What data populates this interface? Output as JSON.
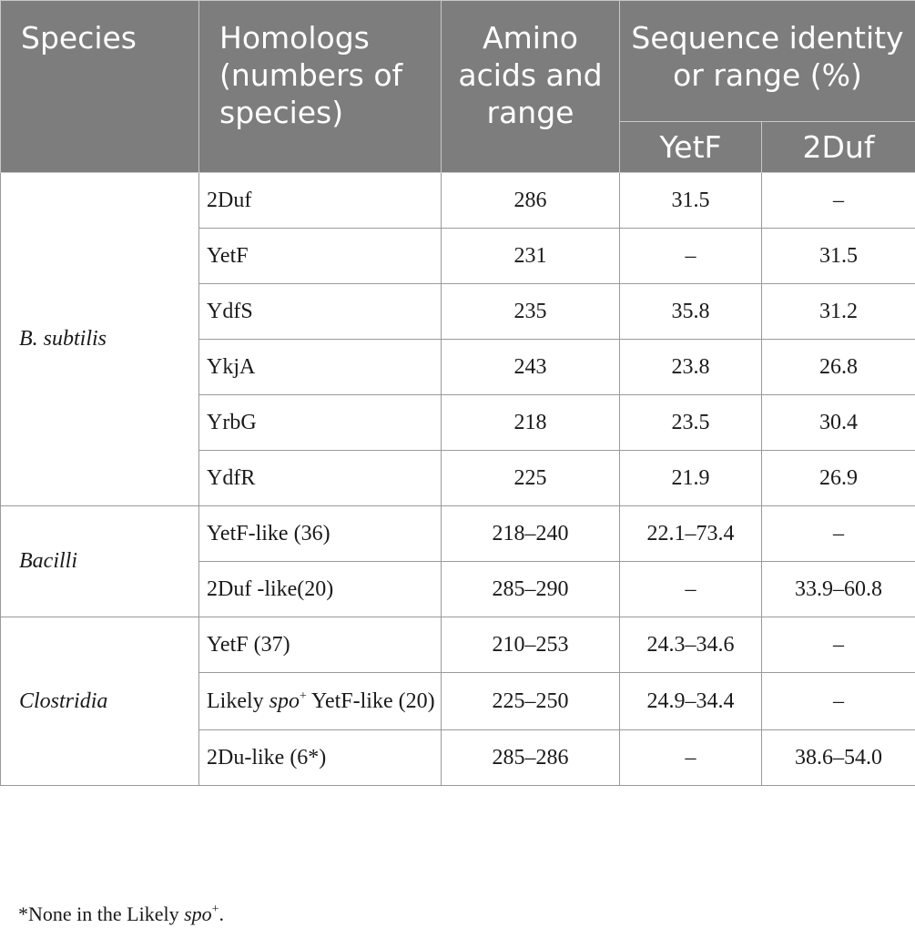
{
  "header": {
    "species": "Species",
    "homologs": "Homologs (numbers of species)",
    "amino": "Amino acids and range",
    "identity": "Sequence identity or range (%)",
    "yetf": "YetF",
    "duf": "2Duf"
  },
  "groups": [
    {
      "species": "B. subtilis",
      "rows": [
        {
          "homolog": "2Duf",
          "aa": "286",
          "yetf": "31.5",
          "duf": "–"
        },
        {
          "homolog": "YetF",
          "aa": "231",
          "yetf": "–",
          "duf": "31.5"
        },
        {
          "homolog": "YdfS",
          "aa": "235",
          "yetf": "35.8",
          "duf": "31.2"
        },
        {
          "homolog": "YkjA",
          "aa": "243",
          "yetf": "23.8",
          "duf": "26.8"
        },
        {
          "homolog": "YrbG",
          "aa": "218",
          "yetf": "23.5",
          "duf": "30.4"
        },
        {
          "homolog": "YdfR",
          "aa": "225",
          "yetf": "21.9",
          "duf": "26.9"
        }
      ]
    },
    {
      "species": "Bacilli",
      "rows": [
        {
          "homolog": "YetF-like (36)",
          "aa": "218–240",
          "yetf": "22.1–73.4",
          "duf": "–"
        },
        {
          "homolog": "2Duf -like(20)",
          "aa": "285–290",
          "yetf": "–",
          "duf": "33.9–60.8"
        }
      ]
    },
    {
      "species": "Clostridia",
      "rows": [
        {
          "homolog": "YetF (37)",
          "aa": "210–253",
          "yetf": "24.3–34.6",
          "duf": "–"
        },
        {
          "homolog_pre": "Likely ",
          "homolog_it": "spo",
          "homolog_sup": "+",
          "homolog_post": " YetF-like (20)",
          "aa": "225–250",
          "yetf": "24.9–34.4",
          "duf": "–"
        },
        {
          "homolog": "2Du-like (6*)",
          "aa": "285–286",
          "yetf": "–",
          "duf": "38.6–54.0"
        }
      ]
    }
  ],
  "footnote": {
    "pre": "*None in the Likely ",
    "it": "spo",
    "sup": "+",
    "post": "."
  }
}
